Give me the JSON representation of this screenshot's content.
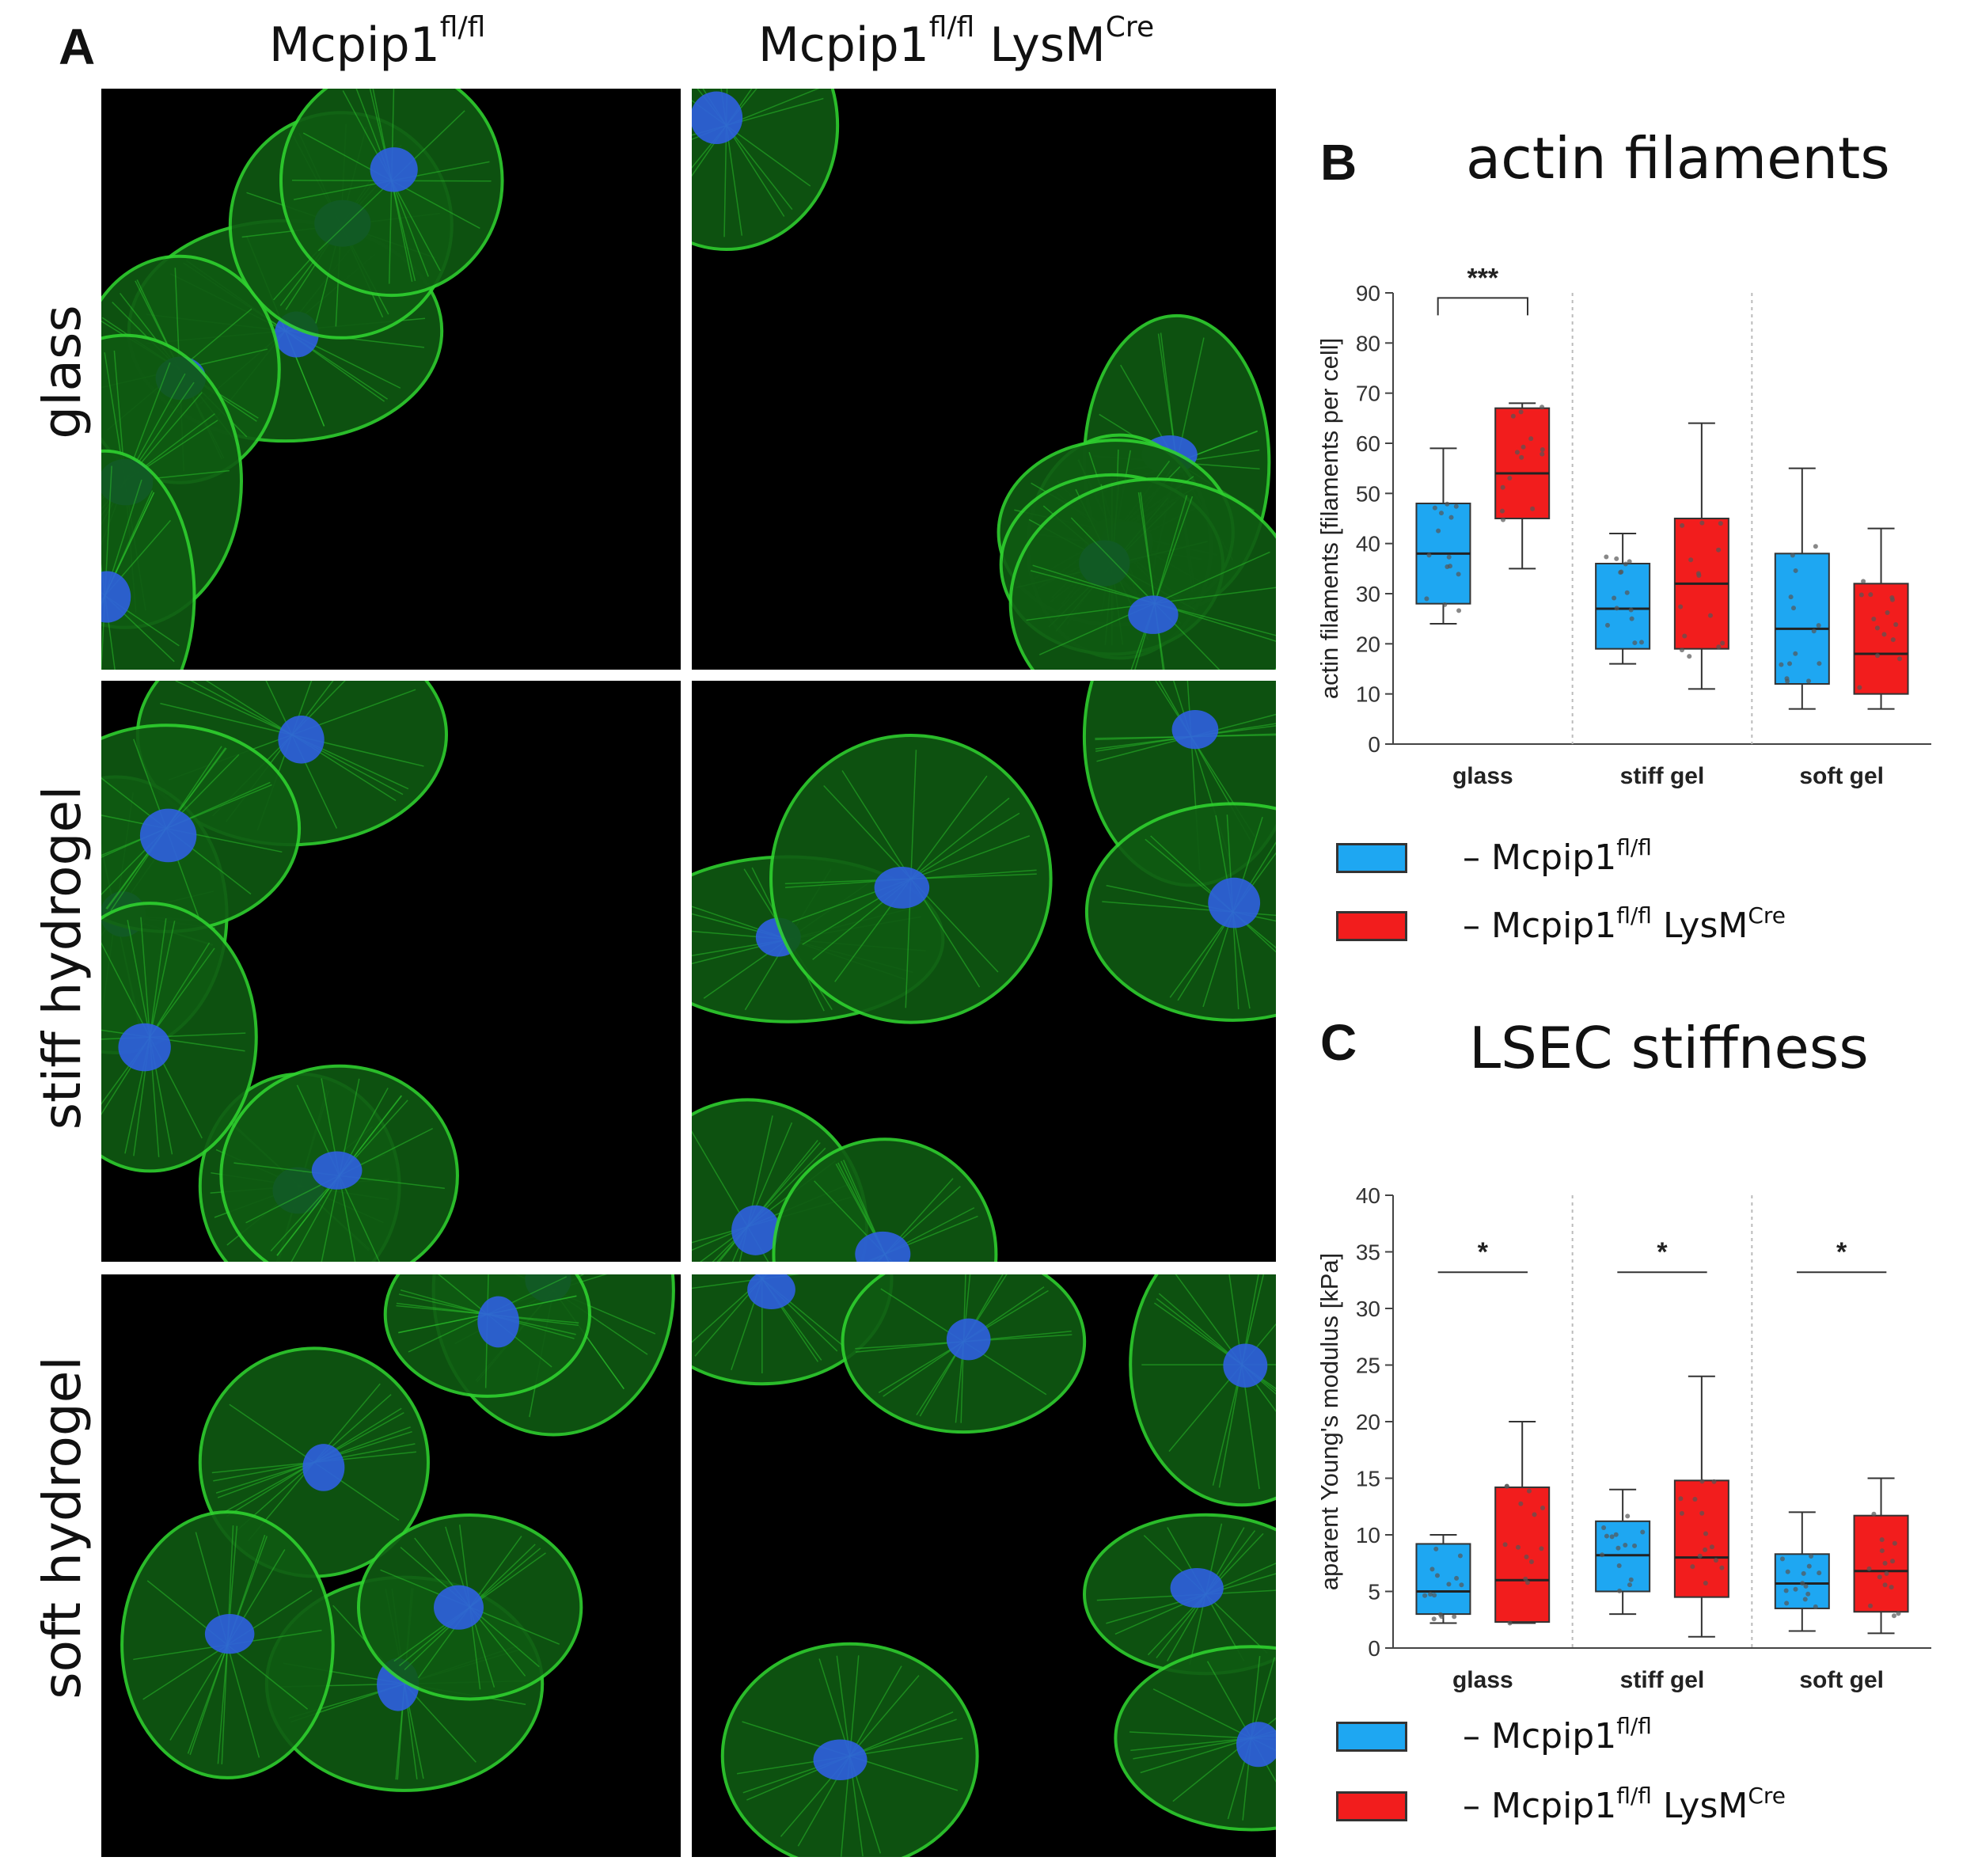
{
  "panel_a": {
    "letter": "A",
    "columns": [
      {
        "base": "Mcpip1",
        "sup": "fl/fl",
        "suffix": "",
        "suffix_sup": ""
      },
      {
        "base": "Mcpip1",
        "sup": "fl/fl",
        "suffix": " LysM",
        "suffix_sup": "Cre"
      }
    ],
    "rows": [
      "glass",
      "stiff hydrogel",
      "soft hydrogel"
    ],
    "colors": {
      "actin": "#2fd12f",
      "nucleus": "#2f5fe0",
      "background": "#000000"
    }
  },
  "panel_b": {
    "letter": "B",
    "title": "actin filaments",
    "legend": [
      {
        "color": "#1ea7f2",
        "prefix": "– ",
        "base": "Mcpip1",
        "sup": "fl/fl",
        "suffix": "",
        "suffix_sup": ""
      },
      {
        "color": "#f21d1d",
        "prefix": "– ",
        "base": "Mcpip1",
        "sup": "fl/fl",
        "suffix": " LysM",
        "suffix_sup": "Cre"
      }
    ]
  },
  "panel_c": {
    "letter": "C",
    "title": "LSEC stiffness",
    "legend": [
      {
        "color": "#1ea7f2",
        "prefix": "– ",
        "base": "Mcpip1",
        "sup": "fl/fl",
        "suffix": "",
        "suffix_sup": ""
      },
      {
        "color": "#f21d1d",
        "prefix": "– ",
        "base": "Mcpip1",
        "sup": "fl/fl",
        "suffix": " LysM",
        "suffix_sup": "Cre"
      }
    ]
  },
  "chart_data": [
    {
      "type": "box",
      "title": "actin filaments",
      "ylabel": "actin filaments [filaments per cell]",
      "ylim": [
        0,
        90
      ],
      "yticks": [
        0,
        10,
        20,
        30,
        40,
        50,
        60,
        70,
        80,
        90
      ],
      "categories": [
        "glass",
        "stiff gel",
        "soft gel"
      ],
      "colors": [
        "#1ea7f2",
        "#f21d1d"
      ],
      "series": [
        {
          "boxes": [
            {
              "min": 24,
              "q1": 28,
              "median": 38,
              "q3": 48,
              "max": 59
            },
            {
              "min": 16,
              "q1": 19,
              "median": 27,
              "q3": 36,
              "max": 42
            },
            {
              "min": 7,
              "q1": 12,
              "median": 23,
              "q3": 38,
              "max": 55
            }
          ]
        },
        {
          "boxes": [
            {
              "min": 35,
              "q1": 45,
              "median": 54,
              "q3": 67,
              "max": 68
            },
            {
              "min": 11,
              "q1": 19,
              "median": 32,
              "q3": 45,
              "max": 64
            },
            {
              "min": 7,
              "q1": 10,
              "median": 18,
              "q3": 32,
              "max": 43
            }
          ]
        }
      ],
      "significance": [
        {
          "category": "glass",
          "label": "***",
          "style": "bracket",
          "y": 89
        }
      ]
    },
    {
      "type": "box",
      "title": "LSEC stiffness",
      "ylabel": "aparent Young's modulus [kPa]",
      "ylim": [
        0,
        40
      ],
      "yticks": [
        0,
        5,
        10,
        15,
        20,
        25,
        30,
        35,
        40
      ],
      "categories": [
        "glass",
        "stiff gel",
        "soft gel"
      ],
      "colors": [
        "#1ea7f2",
        "#f21d1d"
      ],
      "series": [
        {
          "boxes": [
            {
              "min": 2.2,
              "q1": 3,
              "median": 5,
              "q3": 9.2,
              "max": 10
            },
            {
              "min": 3,
              "q1": 5,
              "median": 8.2,
              "q3": 11.2,
              "max": 14
            },
            {
              "min": 1.5,
              "q1": 3.5,
              "median": 5.7,
              "q3": 8.3,
              "max": 12
            }
          ]
        },
        {
          "boxes": [
            {
              "min": 2.2,
              "q1": 2.3,
              "median": 6,
              "q3": 14.2,
              "max": 20
            },
            {
              "min": 1,
              "q1": 4.5,
              "median": 8,
              "q3": 14.8,
              "max": 24
            },
            {
              "min": 1.3,
              "q1": 3.2,
              "median": 6.8,
              "q3": 11.7,
              "max": 15
            }
          ]
        }
      ],
      "significance": [
        {
          "category": "glass",
          "label": "*",
          "style": "line",
          "y": 33.2
        },
        {
          "category": "stiff gel",
          "label": "*",
          "style": "line",
          "y": 33.2
        },
        {
          "category": "soft gel",
          "label": "*",
          "style": "line",
          "y": 33.2
        }
      ]
    }
  ]
}
